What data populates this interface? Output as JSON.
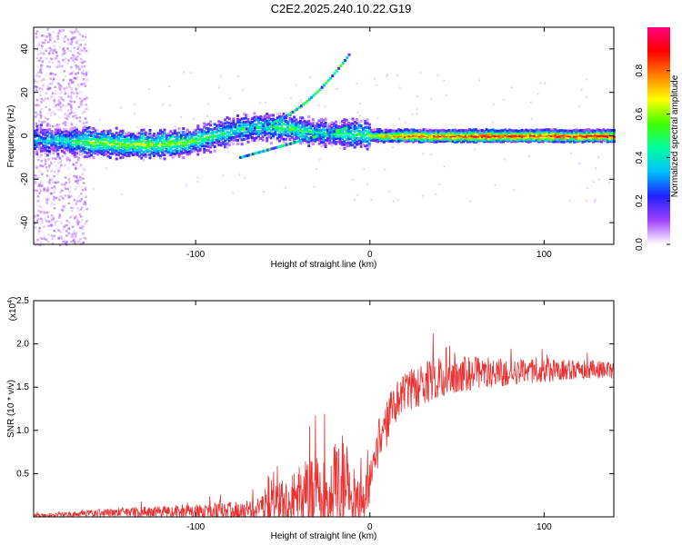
{
  "title": "C2E2.2025.240.10.22.G19",
  "chart_data": [
    {
      "type": "heatmap",
      "name": "spectrogram",
      "xlabel": "Height of straight line (km)",
      "ylabel": "Frequency (Hz)",
      "xlim": [
        -193,
        140
      ],
      "ylim": [
        -50,
        50
      ],
      "xticks": [
        {
          "value": -100,
          "label": "-100"
        },
        {
          "value": 0,
          "label": "0"
        },
        {
          "value": 100,
          "label": "100"
        }
      ],
      "yticks": [
        {
          "value": -40,
          "label": "-40"
        },
        {
          "value": -20,
          "label": "-20"
        },
        {
          "value": 0,
          "label": "0"
        },
        {
          "value": 20,
          "label": "20"
        },
        {
          "value": 40,
          "label": "40"
        }
      ],
      "main_band": {
        "x": [
          -193,
          -180,
          -160,
          -140,
          -120,
          -105,
          -95,
          -85,
          -75,
          -65,
          -55,
          -45,
          -35,
          -25,
          -15,
          -5,
          5,
          20,
          50,
          80,
          110,
          140
        ],
        "f": [
          -2,
          -2,
          -3,
          -4,
          -4,
          -3,
          -1,
          1,
          3,
          4,
          4,
          3,
          2,
          1,
          1,
          0.5,
          0,
          0,
          0,
          0,
          0,
          0
        ],
        "amp": [
          0.35,
          0.4,
          0.55,
          0.6,
          0.6,
          0.55,
          0.5,
          0.45,
          0.4,
          0.4,
          0.45,
          0.5,
          0.45,
          0.4,
          0.45,
          0.5,
          0.7,
          0.85,
          0.9,
          0.9,
          0.9,
          0.9
        ]
      },
      "colorbar": {
        "label": "Normalized spectral amplitude",
        "range": [
          0,
          1
        ],
        "ticks": [
          {
            "value": 0.0,
            "label": "0.0"
          },
          {
            "value": 0.2,
            "label": "0.2"
          },
          {
            "value": 0.4,
            "label": "0.4"
          },
          {
            "value": 0.6,
            "label": "0.6"
          },
          {
            "value": 0.8,
            "label": "0.8"
          }
        ],
        "colors": [
          "#ffffff",
          "#a040ff",
          "#2020ff",
          "#00c0ff",
          "#00ffa0",
          "#40ff00",
          "#ffff00",
          "#ff8000",
          "#ff0000",
          "#ff0080"
        ]
      }
    },
    {
      "type": "line",
      "name": "snr",
      "xlabel": "Height of straight line (km)",
      "ylabel": "SNR (10 * v/v)",
      "multiplier_label": "(x10",
      "multiplier_exp": "4",
      "xlim": [
        -193,
        140
      ],
      "ylim": [
        0,
        2.5
      ],
      "xticks": [
        {
          "value": -100,
          "label": "-100"
        },
        {
          "value": 0,
          "label": "0"
        },
        {
          "value": 100,
          "label": "100"
        }
      ],
      "yticks": [
        {
          "value": 0.5,
          "label": "0.5"
        },
        {
          "value": 1.0,
          "label": "1.0"
        },
        {
          "value": 1.5,
          "label": "1.5"
        },
        {
          "value": 2.0,
          "label": "2.0"
        },
        {
          "value": 2.5,
          "label": "2.5"
        }
      ],
      "series": [
        {
          "name": "SNR",
          "color": "#e83232",
          "envelope_x": [
            -193,
            -170,
            -150,
            -130,
            -110,
            -90,
            -75,
            -65,
            -55,
            -45,
            -35,
            -25,
            -15,
            -8,
            -2,
            5,
            15,
            25,
            40,
            55,
            70,
            90,
            110,
            140
          ],
          "envelope_y": [
            0.03,
            0.06,
            0.1,
            0.12,
            0.13,
            0.16,
            0.18,
            0.22,
            0.35,
            0.5,
            0.7,
            0.9,
            1.0,
            0.6,
            0.5,
            1.2,
            1.55,
            1.75,
            1.85,
            1.85,
            1.85,
            1.82,
            1.82,
            1.8
          ],
          "noise_y": [
            0.02,
            0.03,
            0.05,
            0.06,
            0.07,
            0.1,
            0.12,
            0.12,
            0.2,
            0.35,
            0.45,
            0.55,
            0.6,
            0.4,
            0.25,
            0.3,
            0.25,
            0.25,
            0.25,
            0.2,
            0.18,
            0.15,
            0.12,
            0.1
          ]
        }
      ]
    }
  ]
}
